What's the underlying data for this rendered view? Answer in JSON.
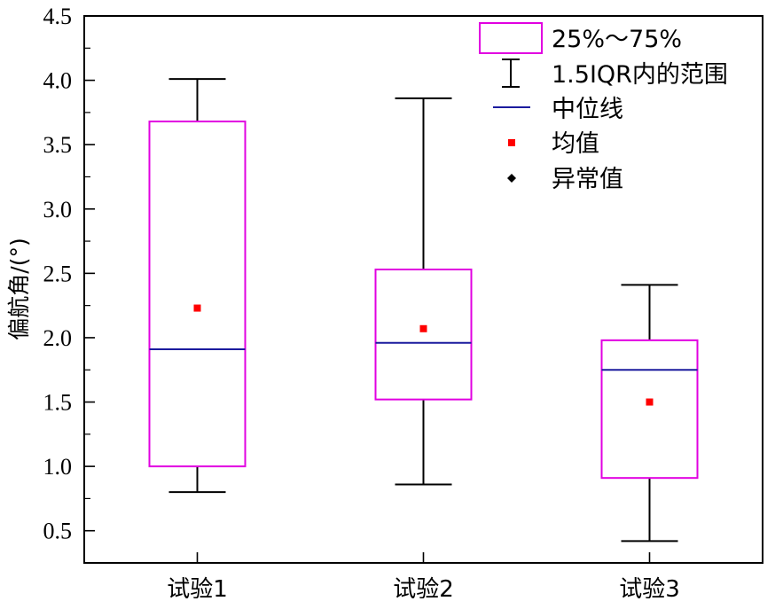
{
  "colors": {
    "box": "#e100e1",
    "median": "#1b1b9e",
    "mean": "#ff0000",
    "outlier": "#000000",
    "axis": "#000000"
  },
  "chart_data": {
    "type": "box",
    "title": "",
    "xlabel": "",
    "ylabel": "偏航角/(°)",
    "ylim": [
      0.25,
      4.5
    ],
    "y_ticks": [
      0.5,
      1.0,
      1.5,
      2.0,
      2.5,
      3.0,
      3.5,
      4.0,
      4.5
    ],
    "y_tick_labels": [
      "0.5",
      "1.0",
      "1.5",
      "2.0",
      "2.5",
      "3.0",
      "3.5",
      "4.0",
      "4.5"
    ],
    "grid": false,
    "legend_position": "top-right",
    "legend": {
      "box": "25%～75%",
      "range": "1.5IQR内的范围",
      "median": "中位线",
      "mean": "均值",
      "outlier": "异常值"
    },
    "categories": [
      "试验1",
      "试验2",
      "试验3"
    ],
    "series": [
      {
        "whisker_low": 0.8,
        "q1": 1.0,
        "median": 1.91,
        "q3": 3.68,
        "whisker_high": 4.01,
        "mean": 2.23
      },
      {
        "whisker_low": 0.86,
        "q1": 1.52,
        "median": 1.96,
        "q3": 2.53,
        "whisker_high": 3.86,
        "mean": 2.07
      },
      {
        "whisker_low": 0.42,
        "q1": 0.91,
        "median": 1.75,
        "q3": 1.98,
        "whisker_high": 2.41,
        "mean": 1.5
      }
    ]
  }
}
